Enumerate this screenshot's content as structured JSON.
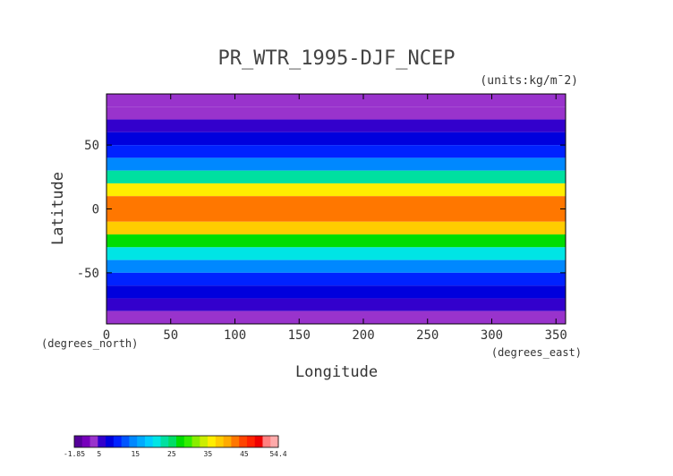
{
  "chart_data": {
    "type": "heatmap",
    "title": "PR_WTR_1995-DJF_NCEP",
    "units": "(units:kg/m¯2)",
    "xlabel": "Longitude",
    "ylabel": "Latitude",
    "x_unit_label": "(degrees_east)",
    "y_unit_label": "(degrees_north)",
    "xlim": [
      0,
      357.5
    ],
    "ylim": [
      -90,
      90
    ],
    "x_ticks": [
      0,
      50,
      100,
      150,
      200,
      250,
      300,
      350
    ],
    "y_ticks": [
      -50,
      0,
      50
    ],
    "lat_band_centers": [
      85,
      75,
      65,
      55,
      45,
      35,
      25,
      15,
      5,
      -5,
      -15,
      -25,
      -35,
      -45,
      -55,
      -65,
      -75,
      -85
    ],
    "zonal_mean_values": [
      4,
      4,
      5,
      7,
      10,
      14,
      22,
      35,
      42,
      43,
      38,
      27,
      20,
      14,
      11,
      8,
      5,
      3
    ],
    "colorbar": {
      "min": -1.85,
      "max": 54.4,
      "tick_values": [
        -1.85,
        5,
        15,
        25,
        35,
        45,
        54.4
      ],
      "tick_labels": [
        "-1.85",
        "5",
        "15",
        "25",
        "35",
        "45",
        "54.4"
      ],
      "colors": [
        "#550099",
        "#7700bb",
        "#9933cc",
        "#3300cc",
        "#0000dd",
        "#0022ff",
        "#0055ff",
        "#0088ff",
        "#00aaff",
        "#00ccff",
        "#00e5e5",
        "#00e0a0",
        "#00dd66",
        "#00dd00",
        "#33ee00",
        "#88ee00",
        "#ccee00",
        "#ffee00",
        "#ffcc00",
        "#ffaa00",
        "#ff7700",
        "#ff4400",
        "#ff2200",
        "#ee0000",
        "#ff8080",
        "#ffaaaa"
      ]
    }
  }
}
